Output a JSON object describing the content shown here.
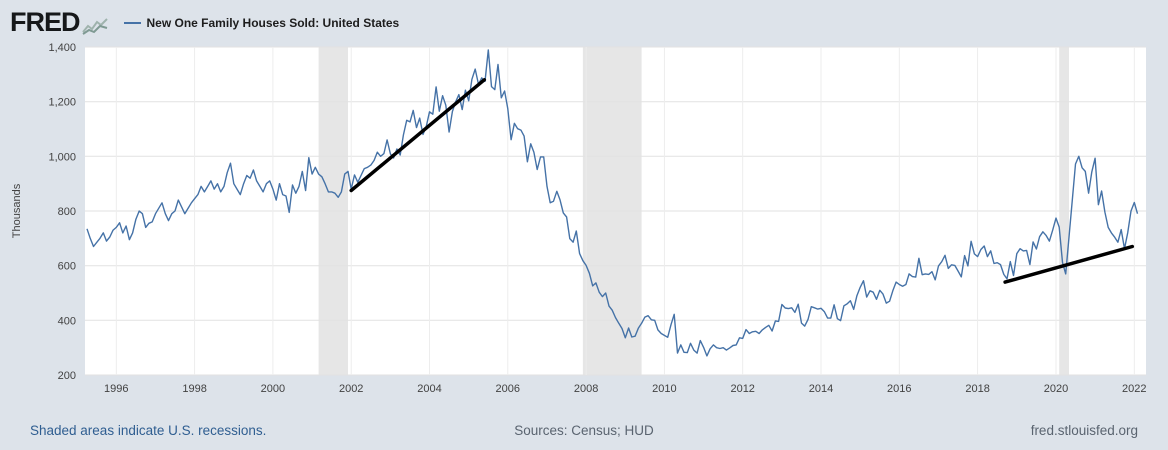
{
  "header": {
    "logo_text": "FRED"
  },
  "footer": {
    "recession_note": "Shaded areas indicate U.S. recessions.",
    "sources": "Sources: Census; HUD",
    "site": "fred.stlouisfed.org"
  },
  "chart_data": {
    "type": "line",
    "title": "New One Family Houses Sold: United States",
    "xlabel": "",
    "ylabel": "Thousands",
    "ylim": [
      200,
      1400
    ],
    "xlim": [
      1995.2,
      2022.3
    ],
    "y_ticks": [
      200,
      400,
      600,
      800,
      1000,
      1200,
      1400
    ],
    "x_ticks": [
      1996,
      1998,
      2000,
      2002,
      2004,
      2006,
      2008,
      2010,
      2012,
      2014,
      2016,
      2018,
      2020,
      2022
    ],
    "grid": true,
    "legend_position": "top-left-header",
    "frequency": "monthly",
    "start_year": 1995,
    "start_month": 4,
    "recession_color": "#e6e6e6",
    "recessions": [
      [
        2001.167,
        2001.917
      ],
      [
        2007.917,
        2009.417
      ],
      [
        2020.083,
        2020.333
      ]
    ],
    "trend_lines": [
      {
        "x1": 2002.0,
        "y1": 875,
        "x2": 2005.4,
        "y2": 1280,
        "color": "#000000"
      },
      {
        "x1": 2018.7,
        "y1": 540,
        "x2": 2021.95,
        "y2": 670,
        "color": "#000000"
      }
    ],
    "series": [
      {
        "name": "New One Family Houses Sold: United States",
        "color": "#4572a7",
        "values": [
          735,
          700,
          670,
          685,
          700,
          720,
          690,
          705,
          730,
          740,
          757,
          720,
          745,
          695,
          720,
          770,
          800,
          790,
          740,
          755,
          760,
          790,
          810,
          830,
          790,
          765,
          790,
          800,
          840,
          815,
          790,
          810,
          830,
          845,
          860,
          890,
          870,
          890,
          910,
          880,
          900,
          870,
          890,
          940,
          975,
          900,
          880,
          860,
          900,
          930,
          920,
          950,
          910,
          890,
          870,
          900,
          910,
          880,
          840,
          900,
          860,
          855,
          795,
          895,
          865,
          890,
          945,
          875,
          995,
          935,
          960,
          935,
          925,
          900,
          870,
          870,
          865,
          850,
          870,
          935,
          945,
          880,
          932,
          905,
          930,
          955,
          960,
          968,
          985,
          1015,
          1000,
          1010,
          1060,
          1009,
          994,
          1027,
          1005,
          1078,
          1132,
          1126,
          1168,
          1105,
          1140,
          1080,
          1110,
          1163,
          1154,
          1254,
          1165,
          1222,
          1187,
          1089,
          1164,
          1199,
          1226,
          1171,
          1242,
          1203,
          1282,
          1319,
          1263,
          1287,
          1274,
          1389,
          1255,
          1244,
          1336,
          1214,
          1239,
          1174,
          1061,
          1121,
          1101,
          1096,
          1074,
          980,
          1046,
          1015,
          952,
          998,
          998,
          890,
          830,
          836,
          872,
          841,
          793,
          778,
          699,
          686,
          727,
          644,
          618,
          601,
          572,
          526,
          537,
          503,
          487,
          500,
          452,
          437,
          410,
          389,
          370,
          336,
          372,
          339,
          342,
          371,
          389,
          412,
          417,
          402,
          400,
          365,
          352,
          345,
          338,
          384,
          422,
          280,
          310,
          283,
          282,
          316,
          291,
          280,
          326,
          301,
          270,
          296,
          310,
          300,
          297,
          300,
          291,
          299,
          308,
          310,
          336,
          334,
          366,
          352,
          358,
          360,
          352,
          365,
          374,
          382,
          361,
          398,
          396,
          458,
          445,
          443,
          446,
          429,
          459,
          390,
          379,
          403,
          450,
          446,
          441,
          444,
          432,
          408,
          408,
          457,
          406,
          399,
          453,
          460,
          472,
          440,
          490,
          521,
          545,
          485,
          508,
          503,
          477,
          510,
          496,
          463,
          470,
          508,
          540,
          531,
          525,
          531,
          570,
          560,
          558,
          627,
          567,
          570,
          568,
          578,
          548,
          599,
          615,
          638,
          590,
          603,
          601,
          580,
          559,
          637,
          599,
          689,
          643,
          633,
          659,
          672,
          633,
          654,
          608,
          611,
          604,
          568,
          552,
          615,
          564,
          644,
          662,
          654,
          656,
          604,
          687,
          661,
          706,
          724,
          710,
          690,
          730,
          774,
          741,
          612,
          570,
          704,
          840,
          972,
          1000,
          958,
          945,
          865,
          943,
          993,
          823,
          873,
          796,
          740,
          720,
          704,
          686,
          732,
          662,
          720,
          800,
          831,
          790
        ]
      }
    ]
  }
}
